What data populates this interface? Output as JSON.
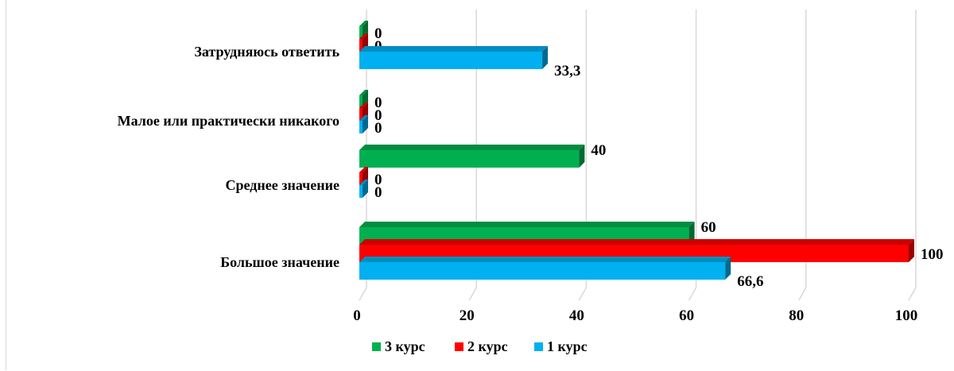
{
  "chart_data": {
    "type": "bar",
    "orientation": "horizontal",
    "title": "",
    "xlabel": "",
    "ylabel": "",
    "categories": [
      "Большое значение",
      "Среднее значение",
      "Малое или практически никакого",
      "Затрудняюсь ответить"
    ],
    "series": [
      {
        "name": "1 курс",
        "color": "#00b0f0",
        "values": [
          66.6,
          0,
          0,
          33.3
        ],
        "labels": [
          "66,6",
          "0",
          "0",
          "33,3"
        ]
      },
      {
        "name": "2 курс",
        "color": "#ff0000",
        "values": [
          100,
          0,
          0,
          0
        ],
        "labels": [
          "100",
          "0",
          "0",
          "0"
        ]
      },
      {
        "name": "3 курс",
        "color": "#00b050",
        "values": [
          60,
          40,
          0,
          0
        ],
        "labels": [
          "60",
          "40",
          "0",
          "0"
        ]
      }
    ],
    "xlim": [
      0,
      100
    ],
    "xticks": [
      "0",
      "20",
      "40",
      "60",
      "80",
      "100"
    ],
    "grid": true,
    "legend": "bottom",
    "style": "3d-bars"
  }
}
